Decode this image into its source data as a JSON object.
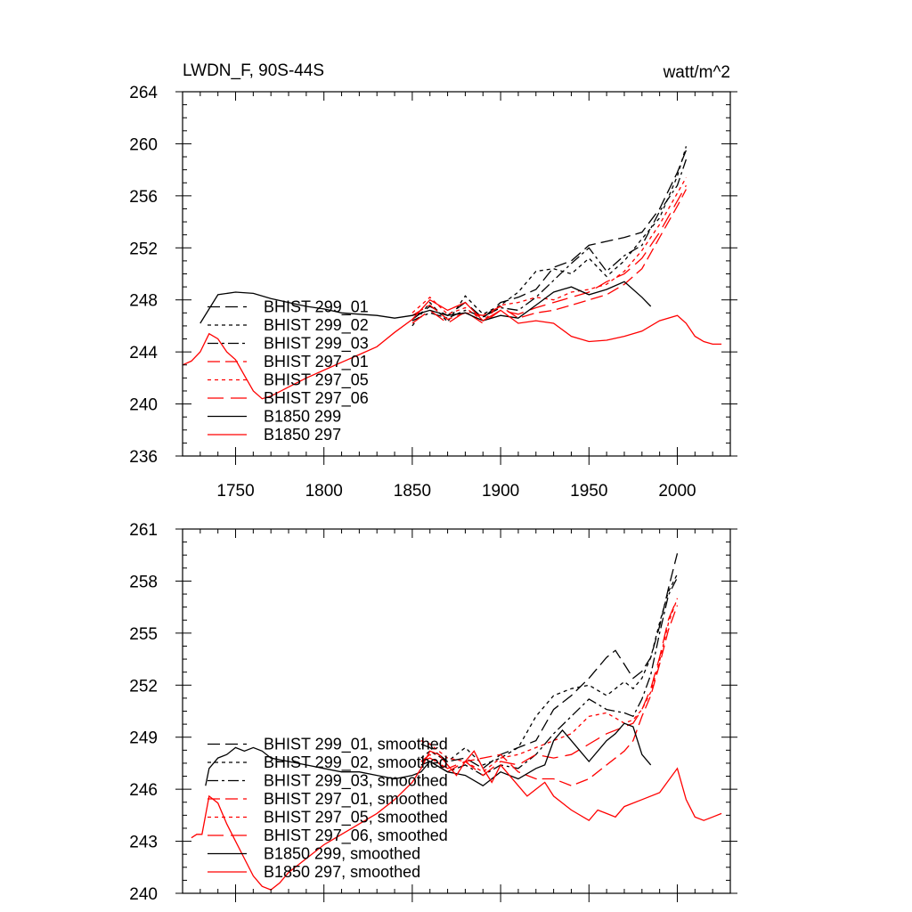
{
  "chart_data": [
    {
      "type": "line",
      "title_left": "LWDN_F, 90S-44S",
      "title_right": "watt/m^2",
      "xlim": [
        1720,
        2030
      ],
      "ylim": [
        236,
        264
      ],
      "xticks": [
        1750,
        1800,
        1850,
        1900,
        1950,
        2000
      ],
      "yticks": [
        236,
        240,
        244,
        248,
        252,
        256,
        260,
        264
      ],
      "show_xtick_labels": true,
      "grid": false,
      "legend_position": "lower-left",
      "series": [
        {
          "name": "BHIST 299_01",
          "color": "#000000",
          "dash": "long-dash",
          "x": [
            1850,
            1860,
            1870,
            1880,
            1890,
            1900,
            1910,
            1920,
            1930,
            1940,
            1950,
            1960,
            1970,
            1980,
            1990,
            2000,
            2005
          ],
          "y": [
            246.5,
            247.5,
            246.8,
            247.8,
            246.6,
            247.8,
            248.2,
            248.8,
            250.5,
            251.0,
            252.2,
            252.5,
            252.8,
            253.2,
            255.0,
            257.8,
            259.5
          ]
        },
        {
          "name": "BHIST 299_02",
          "color": "#000000",
          "dash": "short-dash",
          "x": [
            1850,
            1860,
            1870,
            1880,
            1890,
            1900,
            1910,
            1920,
            1930,
            1940,
            1950,
            1960,
            1970,
            1980,
            1990,
            2000,
            2005
          ],
          "y": [
            246.0,
            247.8,
            246.3,
            248.3,
            246.9,
            247.6,
            248.6,
            250.2,
            250.4,
            250.0,
            251.2,
            249.8,
            251.0,
            252.7,
            254.3,
            257.5,
            259.8
          ]
        },
        {
          "name": "BHIST 299_03",
          "color": "#000000",
          "dash": "dash-dot",
          "x": [
            1850,
            1860,
            1870,
            1880,
            1890,
            1900,
            1910,
            1920,
            1930,
            1940,
            1950,
            1960,
            1970,
            1980,
            1990,
            2000,
            2005
          ],
          "y": [
            246.4,
            247.0,
            246.6,
            247.2,
            246.7,
            247.4,
            247.2,
            248.2,
            249.5,
            250.8,
            252.0,
            250.2,
            251.4,
            252.2,
            254.8,
            256.8,
            258.8
          ]
        },
        {
          "name": "BHIST 297_01",
          "color": "#ff0000",
          "dash": "long-dash",
          "x": [
            1850,
            1860,
            1870,
            1880,
            1890,
            1900,
            1910,
            1920,
            1930,
            1940,
            1950,
            1960,
            1970,
            1980,
            1990,
            2000,
            2005
          ],
          "y": [
            246.8,
            247.6,
            246.5,
            247.0,
            246.8,
            247.5,
            246.6,
            247.0,
            247.2,
            247.6,
            248.0,
            248.4,
            249.2,
            250.4,
            252.8,
            255.2,
            256.5
          ]
        },
        {
          "name": "BHIST 297_05",
          "color": "#ff0000",
          "dash": "short-dash",
          "x": [
            1850,
            1860,
            1870,
            1880,
            1890,
            1900,
            1910,
            1920,
            1930,
            1940,
            1950,
            1960,
            1970,
            1980,
            1990,
            2000,
            2005
          ],
          "y": [
            247.0,
            248.2,
            246.9,
            247.4,
            246.4,
            247.6,
            247.8,
            248.2,
            248.0,
            248.6,
            248.8,
            249.2,
            250.2,
            251.8,
            253.8,
            256.2,
            257.4
          ]
        },
        {
          "name": "BHIST 297_06",
          "color": "#ff0000",
          "dash": "long-dash-2",
          "x": [
            1850,
            1860,
            1870,
            1880,
            1890,
            1900,
            1910,
            1920,
            1930,
            1940,
            1950,
            1960,
            1970,
            1980,
            1990,
            2000,
            2005
          ],
          "y": [
            246.2,
            247.2,
            246.2,
            247.1,
            246.2,
            247.2,
            246.9,
            247.4,
            247.8,
            248.2,
            248.6,
            249.4,
            250.0,
            251.2,
            253.2,
            255.6,
            256.8
          ]
        },
        {
          "name": "B1850 299",
          "color": "#000000",
          "dash": "solid",
          "x": [
            1730,
            1740,
            1750,
            1760,
            1770,
            1780,
            1790,
            1800,
            1810,
            1820,
            1830,
            1840,
            1850,
            1860,
            1870,
            1880,
            1890,
            1900,
            1910,
            1920,
            1930,
            1940,
            1950,
            1960,
            1970,
            1980,
            1985
          ],
          "y": [
            246.2,
            248.4,
            248.6,
            248.5,
            248.1,
            247.8,
            247.5,
            247.3,
            247.0,
            246.9,
            246.8,
            246.6,
            246.8,
            247.2,
            246.8,
            247.0,
            246.4,
            246.8,
            246.6,
            247.6,
            248.6,
            249.0,
            248.4,
            248.8,
            249.4,
            248.2,
            247.5
          ]
        },
        {
          "name": "B1850 297",
          "color": "#ff0000",
          "dash": "solid",
          "x": [
            1720,
            1725,
            1730,
            1735,
            1740,
            1745,
            1750,
            1755,
            1760,
            1765,
            1770,
            1780,
            1790,
            1800,
            1810,
            1820,
            1830,
            1840,
            1850,
            1860,
            1870,
            1880,
            1890,
            1900,
            1910,
            1920,
            1930,
            1940,
            1950,
            1960,
            1970,
            1980,
            1990,
            2000,
            2005,
            2010,
            2015,
            2020,
            2025
          ],
          "y": [
            243.0,
            243.3,
            244.0,
            245.4,
            245.0,
            244.0,
            243.4,
            242.2,
            241.0,
            240.4,
            240.6,
            241.3,
            242.0,
            242.6,
            243.2,
            243.8,
            244.4,
            245.5,
            246.5,
            248.0,
            247.2,
            247.8,
            246.4,
            247.2,
            246.2,
            246.4,
            246.2,
            245.2,
            244.8,
            244.9,
            245.2,
            245.6,
            246.4,
            246.8,
            246.2,
            245.2,
            244.8,
            244.6,
            244.6
          ]
        }
      ]
    },
    {
      "type": "line",
      "xlim": [
        1720,
        2030
      ],
      "ylim": [
        240,
        261
      ],
      "xticks": [
        1750,
        1800,
        1850,
        1900,
        1950,
        2000
      ],
      "yticks": [
        240,
        243,
        246,
        249,
        252,
        255,
        258,
        261
      ],
      "show_xtick_labels": false,
      "grid": false,
      "legend_position": "lower-left",
      "series": [
        {
          "name": "BHIST 299_01, smoothed",
          "color": "#000000",
          "dash": "long-dash",
          "x": [
            1855,
            1860,
            1870,
            1880,
            1890,
            1900,
            1910,
            1920,
            1930,
            1940,
            1950,
            1960,
            1965,
            1970,
            1975,
            1980,
            1985,
            1990,
            1995,
            2000
          ],
          "y": [
            248.6,
            248.4,
            247.6,
            247.8,
            247.2,
            248.0,
            248.4,
            248.8,
            250.6,
            251.4,
            252.4,
            253.6,
            254.0,
            253.2,
            252.4,
            252.8,
            253.6,
            255.4,
            257.6,
            259.6
          ]
        },
        {
          "name": "BHIST 299_02, smoothed",
          "color": "#000000",
          "dash": "short-dash",
          "x": [
            1855,
            1860,
            1870,
            1880,
            1890,
            1900,
            1910,
            1920,
            1930,
            1940,
            1950,
            1960,
            1970,
            1975,
            1980,
            1985,
            1990,
            1995,
            2000
          ],
          "y": [
            247.8,
            248.2,
            247.6,
            248.4,
            247.4,
            247.8,
            248.4,
            250.2,
            251.4,
            251.8,
            252.0,
            251.4,
            252.2,
            251.8,
            252.4,
            253.6,
            255.6,
            257.4,
            258.4
          ]
        },
        {
          "name": "BHIST 299_03, smoothed",
          "color": "#000000",
          "dash": "dash-dot",
          "x": [
            1855,
            1860,
            1870,
            1880,
            1890,
            1900,
            1910,
            1920,
            1930,
            1940,
            1950,
            1960,
            1970,
            1975,
            1980,
            1985,
            1990,
            1995,
            2000
          ],
          "y": [
            247.4,
            247.6,
            247.0,
            247.4,
            246.8,
            247.4,
            247.2,
            248.0,
            249.2,
            250.2,
            251.2,
            250.6,
            250.4,
            250.2,
            251.2,
            252.6,
            255.0,
            257.2,
            258.2
          ]
        },
        {
          "name": "BHIST 297_01, smoothed",
          "color": "#ff0000",
          "dash": "long-dash",
          "x": [
            1855,
            1860,
            1870,
            1880,
            1890,
            1900,
            1910,
            1920,
            1930,
            1940,
            1950,
            1960,
            1970,
            1975,
            1980,
            1985,
            1990,
            1995,
            2000
          ],
          "y": [
            247.6,
            248.0,
            247.0,
            247.6,
            247.8,
            248.0,
            247.0,
            246.6,
            246.6,
            246.2,
            246.6,
            247.4,
            248.2,
            248.8,
            250.2,
            251.4,
            253.2,
            255.2,
            256.6
          ]
        },
        {
          "name": "BHIST 297_05, smoothed",
          "color": "#ff0000",
          "dash": "short-dash",
          "x": [
            1855,
            1860,
            1870,
            1880,
            1890,
            1900,
            1910,
            1920,
            1930,
            1940,
            1950,
            1960,
            1970,
            1975,
            1980,
            1985,
            1990,
            1995,
            2000
          ],
          "y": [
            248.8,
            248.6,
            247.8,
            247.6,
            247.0,
            247.8,
            248.0,
            248.4,
            248.8,
            249.2,
            250.2,
            250.4,
            249.8,
            250.0,
            250.6,
            251.6,
            253.4,
            255.6,
            257.0
          ]
        },
        {
          "name": "BHIST 297_06, smoothed",
          "color": "#ff0000",
          "dash": "long-dash-2",
          "x": [
            1855,
            1860,
            1870,
            1880,
            1890,
            1900,
            1910,
            1920,
            1930,
            1940,
            1950,
            1960,
            1970,
            1975,
            1980,
            1985,
            1990,
            1995,
            2000
          ],
          "y": [
            247.6,
            247.8,
            247.2,
            247.6,
            246.8,
            247.6,
            247.4,
            248.0,
            247.8,
            248.0,
            248.6,
            249.2,
            249.6,
            249.8,
            250.6,
            251.8,
            253.6,
            255.8,
            257.0
          ]
        },
        {
          "name": "B1850 299, smoothed",
          "color": "#000000",
          "dash": "solid",
          "x": [
            1733,
            1735,
            1740,
            1745,
            1750,
            1755,
            1760,
            1765,
            1770,
            1780,
            1790,
            1800,
            1810,
            1820,
            1830,
            1840,
            1850,
            1855,
            1860,
            1870,
            1880,
            1890,
            1900,
            1910,
            1920,
            1925,
            1930,
            1935,
            1940,
            1945,
            1950,
            1960,
            1965,
            1970,
            1975,
            1980,
            1985
          ],
          "y": [
            246.2,
            247.2,
            247.8,
            248.0,
            248.4,
            248.2,
            248.4,
            248.2,
            247.8,
            247.6,
            247.4,
            247.2,
            247.0,
            247.0,
            246.8,
            246.6,
            246.8,
            247.0,
            247.6,
            247.0,
            246.8,
            246.2,
            247.0,
            246.6,
            247.2,
            247.4,
            248.8,
            249.4,
            248.8,
            248.2,
            247.6,
            248.8,
            249.2,
            249.8,
            249.6,
            248.0,
            247.4
          ]
        },
        {
          "name": "B1850 297, smoothed",
          "color": "#ff0000",
          "dash": "solid",
          "x": [
            1725,
            1728,
            1731,
            1735,
            1740,
            1745,
            1750,
            1755,
            1760,
            1765,
            1770,
            1775,
            1780,
            1790,
            1800,
            1810,
            1820,
            1830,
            1840,
            1850,
            1855,
            1860,
            1865,
            1870,
            1875,
            1880,
            1885,
            1890,
            1895,
            1900,
            1905,
            1910,
            1915,
            1920,
            1925,
            1930,
            1940,
            1950,
            1955,
            1960,
            1965,
            1970,
            1980,
            1990,
            2000,
            2005,
            2010,
            2015,
            2020,
            2025
          ],
          "y": [
            243.2,
            243.4,
            243.4,
            245.6,
            245.2,
            244.0,
            243.0,
            242.0,
            241.0,
            240.4,
            240.2,
            240.6,
            241.2,
            242.0,
            242.8,
            243.4,
            244.0,
            244.6,
            245.4,
            246.4,
            247.2,
            248.2,
            248.0,
            247.4,
            246.8,
            247.6,
            248.2,
            247.2,
            246.4,
            247.4,
            246.8,
            246.2,
            245.6,
            246.0,
            246.4,
            245.6,
            244.8,
            244.2,
            244.8,
            244.6,
            244.4,
            245.0,
            245.4,
            245.8,
            247.2,
            245.4,
            244.4,
            244.2,
            244.4,
            244.6
          ]
        }
      ]
    }
  ]
}
